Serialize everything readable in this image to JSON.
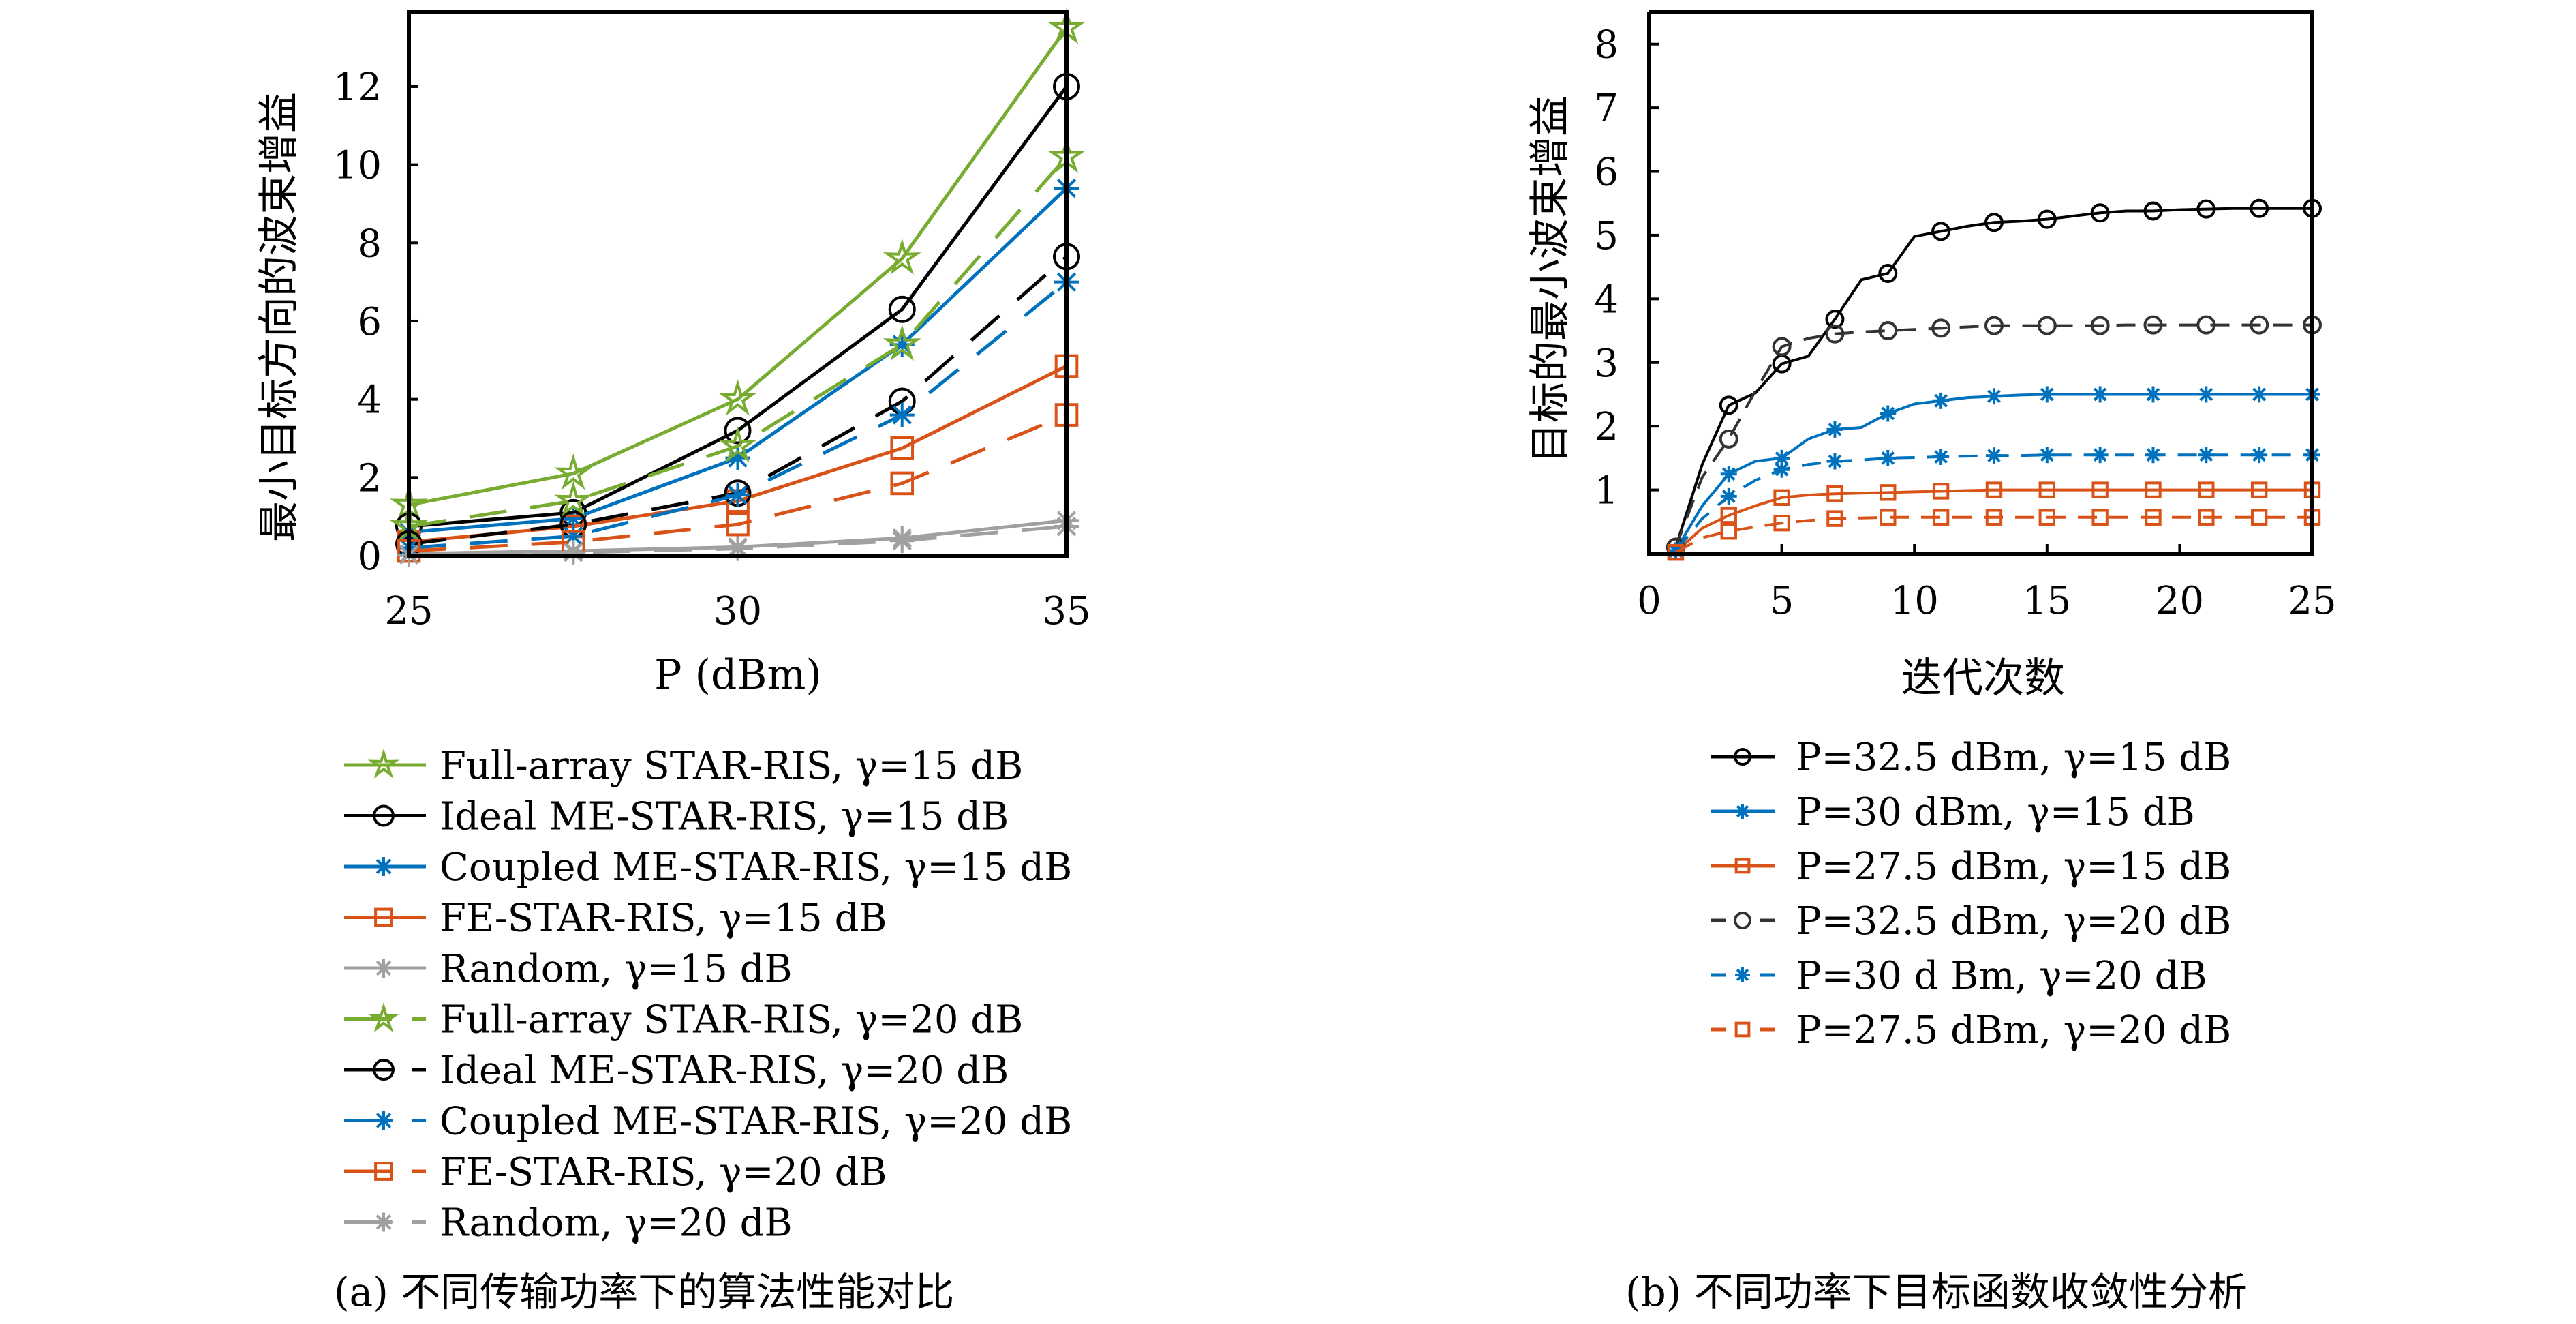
{
  "chart_data": [
    {
      "type": "line",
      "caption": "(a) 不同传输功率下的算法性能对比",
      "xlabel": "P (dBm)",
      "ylabel": "最小目标方向的波束增益",
      "xlim": [
        25,
        35
      ],
      "ylim": [
        0,
        14
      ],
      "xticks": [
        25,
        30,
        35
      ],
      "yticks": [
        0,
        2,
        4,
        6,
        8,
        10,
        12
      ],
      "grid": false,
      "legend_position": "below",
      "x": [
        25,
        27.5,
        30,
        32.5,
        35
      ],
      "series": [
        {
          "name": "Full-array STAR-RIS, γ=15 dB",
          "color": "#77ac30",
          "dash": "solid",
          "marker": "star",
          "values": [
            1.3,
            2.1,
            4.0,
            7.6,
            13.5
          ]
        },
        {
          "name": "Ideal ME-STAR-RIS, γ=15 dB",
          "color": "#000000",
          "dash": "solid",
          "marker": "circle",
          "values": [
            0.75,
            1.1,
            3.2,
            6.3,
            12.0
          ]
        },
        {
          "name": "Coupled ME-STAR-RIS, γ=15 dB",
          "color": "#0072bd",
          "dash": "solid",
          "marker": "asterisk",
          "values": [
            0.6,
            0.95,
            2.5,
            5.4,
            9.4
          ]
        },
        {
          "name": "FE-STAR-RIS, γ=15 dB",
          "color": "#d95319",
          "dash": "solid",
          "marker": "square",
          "values": [
            0.35,
            0.75,
            1.4,
            2.75,
            4.85
          ]
        },
        {
          "name": "Random, γ=15 dB",
          "color": "#a0a0a0",
          "dash": "solid",
          "marker": "asterisk",
          "values": [
            0.05,
            0.12,
            0.22,
            0.45,
            0.9
          ]
        },
        {
          "name": "Full-array STAR-RIS, γ=20 dB",
          "color": "#77ac30",
          "dash": "dashed",
          "marker": "star",
          "values": [
            0.75,
            1.4,
            2.8,
            5.4,
            10.2
          ]
        },
        {
          "name": "Ideal ME-STAR-RIS, γ=20 dB",
          "color": "#000000",
          "dash": "dashed",
          "marker": "circle",
          "values": [
            0.3,
            0.8,
            1.6,
            3.95,
            7.65
          ]
        },
        {
          "name": "Coupled ME-STAR-RIS, γ=20 dB",
          "color": "#0072bd",
          "dash": "dashed",
          "marker": "asterisk",
          "values": [
            0.2,
            0.5,
            1.55,
            3.6,
            7.0
          ]
        },
        {
          "name": "FE-STAR-RIS, γ=20 dB",
          "color": "#d95319",
          "dash": "dashed",
          "marker": "square",
          "values": [
            0.12,
            0.35,
            0.8,
            1.85,
            3.6
          ]
        },
        {
          "name": "Random, γ=20 dB",
          "color": "#a0a0a0",
          "dash": "dashed",
          "marker": "asterisk",
          "values": [
            0.02,
            0.08,
            0.18,
            0.38,
            0.75
          ]
        }
      ]
    },
    {
      "type": "line",
      "caption": "(b) 不同功率下目标函数收敛性分析",
      "xlabel": "迭代次数",
      "ylabel": "目标的最小波束增益",
      "xlim": [
        0,
        25
      ],
      "ylim": [
        0,
        8.5
      ],
      "xticks": [
        0,
        5,
        10,
        15,
        20,
        25
      ],
      "yticks": [
        1,
        2,
        3,
        4,
        5,
        6,
        7,
        8
      ],
      "grid": false,
      "legend_position": "below",
      "x": [
        1,
        2,
        3,
        4,
        5,
        6,
        7,
        8,
        9,
        10,
        11,
        12,
        13,
        14,
        15,
        16,
        17,
        18,
        19,
        20,
        21,
        22,
        23,
        24,
        25
      ],
      "marker_every": 2,
      "series": [
        {
          "name": "P=32.5 dBm, γ=15 dB",
          "color": "#000000",
          "dash": "solid",
          "marker": "circle",
          "values": [
            0.1,
            1.4,
            2.33,
            2.52,
            2.98,
            3.1,
            3.68,
            4.3,
            4.4,
            4.98,
            5.06,
            5.14,
            5.2,
            5.22,
            5.25,
            5.3,
            5.35,
            5.38,
            5.38,
            5.4,
            5.41,
            5.42,
            5.42,
            5.42,
            5.42
          ]
        },
        {
          "name": "P=30 dBm, γ=15 dB",
          "color": "#0072bd",
          "dash": "solid",
          "marker": "asterisk",
          "values": [
            0.05,
            0.75,
            1.25,
            1.45,
            1.5,
            1.8,
            1.95,
            1.98,
            2.2,
            2.35,
            2.4,
            2.45,
            2.47,
            2.49,
            2.5,
            2.5,
            2.5,
            2.5,
            2.5,
            2.5,
            2.5,
            2.5,
            2.5,
            2.5,
            2.5
          ]
        },
        {
          "name": "P=27.5 dBm, γ=15 dB",
          "color": "#d95319",
          "dash": "solid",
          "marker": "square",
          "values": [
            0.02,
            0.4,
            0.6,
            0.75,
            0.88,
            0.92,
            0.94,
            0.95,
            0.96,
            0.97,
            0.98,
            0.99,
            1.0,
            1.0,
            1.0,
            1.0,
            1.0,
            1.0,
            1.0,
            1.0,
            1.0,
            1.0,
            1.0,
            1.0,
            1.0
          ]
        },
        {
          "name": "P=32.5 dBm, γ=20 dB",
          "color": "#333333",
          "dash": "dashed",
          "marker": "circle",
          "values": [
            0.1,
            1.2,
            1.8,
            2.55,
            3.25,
            3.38,
            3.45,
            3.48,
            3.5,
            3.52,
            3.54,
            3.56,
            3.58,
            3.58,
            3.58,
            3.58,
            3.58,
            3.59,
            3.59,
            3.59,
            3.59,
            3.59,
            3.59,
            3.59,
            3.59
          ]
        },
        {
          "name": "P=30 d Bm, γ=20 dB",
          "color": "#0072bd",
          "dash": "dashed",
          "marker": "asterisk",
          "values": [
            0.04,
            0.55,
            0.9,
            1.15,
            1.32,
            1.4,
            1.45,
            1.47,
            1.5,
            1.51,
            1.52,
            1.53,
            1.54,
            1.54,
            1.55,
            1.55,
            1.55,
            1.55,
            1.55,
            1.55,
            1.55,
            1.55,
            1.55,
            1.55,
            1.55
          ]
        },
        {
          "name": "P=27.5 dBm, γ=20 dB",
          "color": "#d95319",
          "dash": "dashed",
          "marker": "square",
          "values": [
            0.02,
            0.25,
            0.35,
            0.42,
            0.48,
            0.52,
            0.55,
            0.56,
            0.57,
            0.57,
            0.57,
            0.57,
            0.57,
            0.57,
            0.57,
            0.57,
            0.57,
            0.57,
            0.57,
            0.57,
            0.57,
            0.57,
            0.57,
            0.57,
            0.57
          ]
        }
      ]
    }
  ]
}
